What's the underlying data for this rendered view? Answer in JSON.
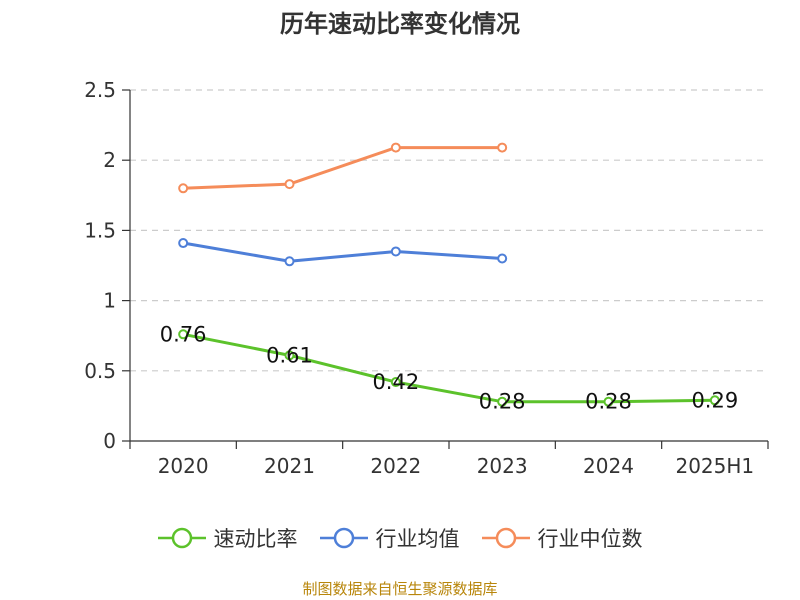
{
  "chart_data": {
    "type": "line",
    "title": "历年速动比率变化情况",
    "categories": [
      "2020",
      "2021",
      "2022",
      "2023",
      "2024",
      "2025H1"
    ],
    "ylim": [
      0,
      2.5
    ],
    "yticks": [
      "0",
      "0.5",
      "1",
      "1.5",
      "2",
      "2.5"
    ],
    "grid": true,
    "legend_position": "bottom",
    "series": [
      {
        "name": "速动比率",
        "color": "#5cc22b",
        "values": [
          0.76,
          0.61,
          0.42,
          0.28,
          0.28,
          0.29
        ],
        "labels": [
          "0.76",
          "0.61",
          "0.42",
          "0.28",
          "0.28",
          "0.29"
        ]
      },
      {
        "name": "行业均值",
        "color": "#4e7fd8",
        "values": [
          1.41,
          1.28,
          1.35,
          1.3,
          null,
          null
        ]
      },
      {
        "name": "行业中位数",
        "color": "#f58c5a",
        "values": [
          1.8,
          1.83,
          2.09,
          2.09,
          null,
          null
        ]
      }
    ]
  },
  "footer": {
    "source": "制图数据来自恒生聚源数据库"
  }
}
